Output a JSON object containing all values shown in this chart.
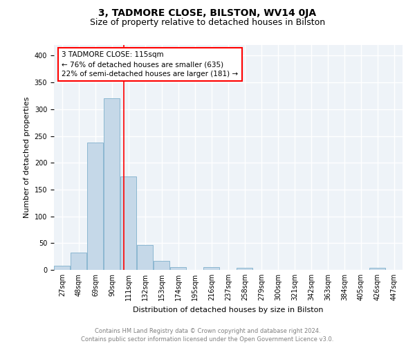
{
  "title": "3, TADMORE CLOSE, BILSTON, WV14 0JA",
  "subtitle": "Size of property relative to detached houses in Bilston",
  "xlabel": "Distribution of detached houses by size in Bilston",
  "ylabel": "Number of detached properties",
  "bin_labels": [
    "27sqm",
    "48sqm",
    "69sqm",
    "90sqm",
    "111sqm",
    "132sqm",
    "153sqm",
    "174sqm",
    "195sqm",
    "216sqm",
    "237sqm",
    "258sqm",
    "279sqm",
    "300sqm",
    "321sqm",
    "342sqm",
    "363sqm",
    "384sqm",
    "405sqm",
    "426sqm",
    "447sqm"
  ],
  "bin_values": [
    8,
    32,
    238,
    320,
    175,
    46,
    17,
    5,
    0,
    5,
    0,
    4,
    0,
    0,
    0,
    0,
    0,
    0,
    0,
    4,
    0
  ],
  "bin_width": 21,
  "bin_starts": [
    27,
    48,
    69,
    90,
    111,
    132,
    153,
    174,
    195,
    216,
    237,
    258,
    279,
    300,
    321,
    342,
    363,
    384,
    405,
    426,
    447
  ],
  "bar_color": "#c5d8e8",
  "bar_edge_color": "#7fb0cc",
  "property_size": 115,
  "vline_color": "red",
  "annotation_text": "3 TADMORE CLOSE: 115sqm\n← 76% of detached houses are smaller (635)\n22% of semi-detached houses are larger (181) →",
  "annotation_box_color": "white",
  "annotation_box_edge": "red",
  "ylim": [
    0,
    420
  ],
  "yticks": [
    0,
    50,
    100,
    150,
    200,
    250,
    300,
    350,
    400
  ],
  "footer_line1": "Contains HM Land Registry data © Crown copyright and database right 2024.",
  "footer_line2": "Contains public sector information licensed under the Open Government Licence v3.0.",
  "bg_color": "#eef3f8",
  "grid_color": "white",
  "title_fontsize": 10,
  "subtitle_fontsize": 9,
  "ylabel_fontsize": 8,
  "xlabel_fontsize": 8,
  "tick_fontsize": 7,
  "footer_fontsize": 6,
  "annot_fontsize": 7.5
}
